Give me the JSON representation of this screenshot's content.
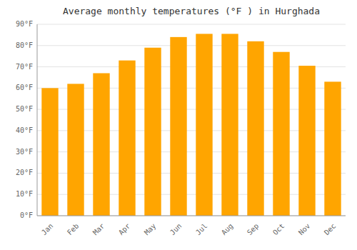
{
  "chart_data": {
    "type": "bar",
    "title": "Average monthly temperatures (°F ) in Hurghada",
    "categories": [
      "Jan",
      "Feb",
      "Mar",
      "Apr",
      "May",
      "Jun",
      "Jul",
      "Aug",
      "Sep",
      "Oct",
      "Nov",
      "Dec"
    ],
    "values": [
      60,
      62,
      67,
      73,
      79,
      84,
      85.5,
      85.5,
      82,
      77,
      70.5,
      63
    ],
    "color": "#FFA500",
    "ylim": [
      0,
      90
    ],
    "yticks": [
      {
        "value": 0,
        "label": "0°F"
      },
      {
        "value": 10,
        "label": "10°F"
      },
      {
        "value": 20,
        "label": "20°F"
      },
      {
        "value": 30,
        "label": "30°F"
      },
      {
        "value": 40,
        "label": "40°F"
      },
      {
        "value": 50,
        "label": "50°F"
      },
      {
        "value": 60,
        "label": "60°F"
      },
      {
        "value": 70,
        "label": "70°F"
      },
      {
        "value": 80,
        "label": "80°F"
      },
      {
        "value": 90,
        "label": "90°F"
      }
    ],
    "grid": true
  }
}
